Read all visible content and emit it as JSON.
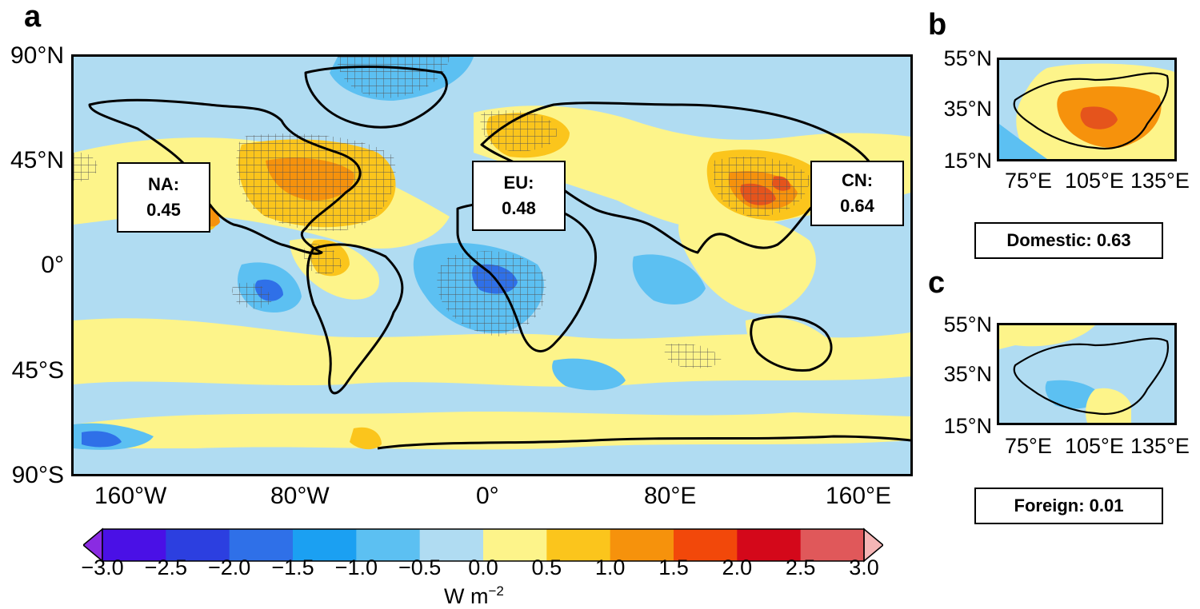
{
  "panels": {
    "a": {
      "letter": "a",
      "lat_ticks": [
        "90°N",
        "45°N",
        "0°",
        "45°S",
        "90°S"
      ],
      "lon_ticks": [
        "160°W",
        "80°W",
        "0°",
        "80°E",
        "160°E"
      ],
      "regions": [
        {
          "name": "NA:",
          "value": "0.45"
        },
        {
          "name": "EU:",
          "value": "0.48"
        },
        {
          "name": "CN:",
          "value": "0.64"
        }
      ]
    },
    "b": {
      "letter": "b",
      "lat_ticks": [
        "55°N",
        "35°N",
        "15°N"
      ],
      "lon_ticks": [
        "75°E",
        "105°E",
        "135°E"
      ],
      "summary": "Domestic: 0.63"
    },
    "c": {
      "letter": "c",
      "lat_ticks": [
        "55°N",
        "35°N",
        "15°N"
      ],
      "lon_ticks": [
        "75°E",
        "105°E",
        "135°E"
      ],
      "summary": "Foreign: 0.01"
    }
  },
  "colorbar": {
    "ticks": [
      "−3.0",
      "−2.5",
      "−2.0",
      "−1.5",
      "−1.0",
      "−0.5",
      "0.0",
      "0.5",
      "1.0",
      "1.5",
      "2.0",
      "2.5",
      "3.0"
    ],
    "colors": [
      "#4a10e6",
      "#2c3fe0",
      "#2f70e8",
      "#1ba0f2",
      "#5cc0f2",
      "#b0dcf2",
      "#fdf48a",
      "#fbc51c",
      "#f6920c",
      "#f2480a",
      "#d4081a",
      "#e0585a"
    ],
    "under_color": "#8a2be2",
    "over_color": "#f5b5b5",
    "unit_base": "W m",
    "unit_exp": "−2"
  },
  "map_colors": {
    "ocean_base": "#b0dcf2",
    "warm_light": "#fdf48a",
    "warm_mid": "#fbc51c",
    "warm_high": "#f6920c",
    "warm_peak": "#e5541c",
    "cool_mid": "#5cc0f2",
    "cool_high": "#2f70e8"
  }
}
